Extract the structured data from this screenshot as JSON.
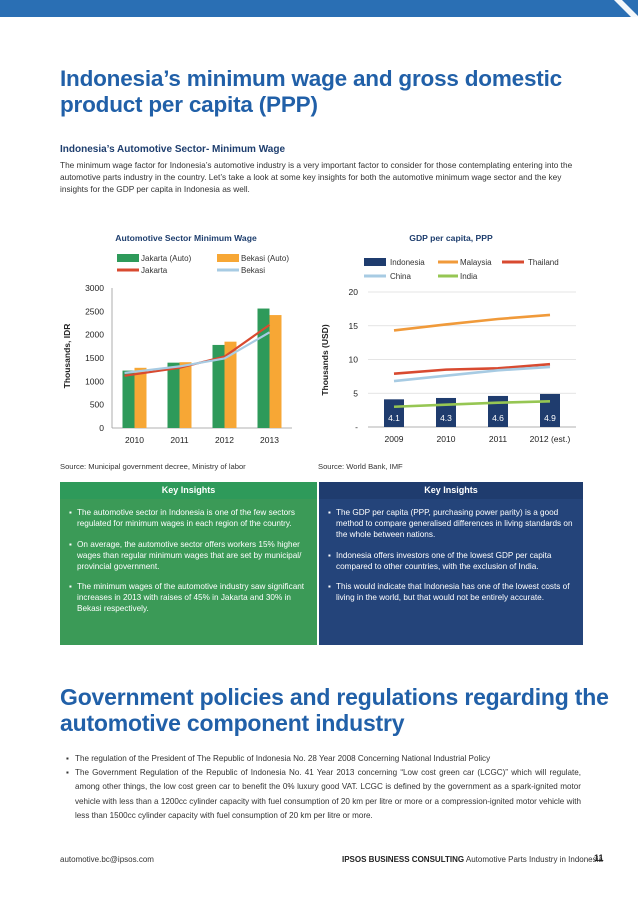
{
  "header": {
    "title": "Indonesia’s minimum wage and gross domestic product per capita (PPP)"
  },
  "intro": {
    "subheading": "Indonesia’s Automotive Sector- Minimum Wage",
    "paragraph": "The minimum wage factor for Indonesia’s automotive industry is a very important factor to consider for those contemplating entering into the automotive parts industry in the country. Let’s take a look at some key insights for both the automotive minimum wage sector and the key insights for the GDP per capita in Indonesia as well."
  },
  "colors": {
    "accent_blue": "#2160a8",
    "navy": "#1f3c6e",
    "green": "#3b9a57",
    "bar_green": "#2e9a5a",
    "bar_orange": "#f7a735",
    "line_red": "#d84a30",
    "line_lightblue": "#a7cbe3",
    "line_lightgreen": "#96c653",
    "line_orange": "#f09a3a"
  },
  "chart_data": [
    {
      "type": "bar",
      "title": "Automotive Sector Minimum Wage",
      "ylabel": "Thousands, IDR",
      "xlabel": "",
      "categories": [
        "2010",
        "2011",
        "2012",
        "2013"
      ],
      "ylim": [
        0,
        3000
      ],
      "yticks": [
        "0",
        "500",
        "1000",
        "1500",
        "2000",
        "2500",
        "3000"
      ],
      "series": [
        {
          "name": "Jakarta (Auto)",
          "kind": "bar",
          "values": [
            1230,
            1400,
            1780,
            2560
          ]
        },
        {
          "name": "Bekasi (Auto)",
          "kind": "bar",
          "values": [
            1290,
            1410,
            1850,
            2420
          ]
        },
        {
          "name": "Jakarta",
          "kind": "line",
          "values": [
            1120,
            1290,
            1530,
            2210
          ]
        },
        {
          "name": "Bekasi",
          "kind": "line",
          "values": [
            1180,
            1320,
            1490,
            2050
          ]
        }
      ],
      "legend_position": "top",
      "grid": false
    },
    {
      "type": "bar",
      "title": "GDP per capita, PPP",
      "ylabel": "Thousands (USD)",
      "xlabel": "",
      "categories": [
        "2009",
        "2010",
        "2011",
        "2012 (est.)"
      ],
      "ylim": [
        0,
        20
      ],
      "yticks": [
        "-",
        "5",
        "10",
        "15",
        "20"
      ],
      "series": [
        {
          "name": "Indonesia",
          "kind": "bar",
          "values": [
            4.1,
            4.3,
            4.6,
            4.9
          ],
          "labels": [
            "4.1",
            "4.3",
            "4.6",
            "4.9"
          ]
        },
        {
          "name": "Malaysia",
          "kind": "line",
          "values": [
            14.3,
            15.2,
            16.0,
            16.6
          ]
        },
        {
          "name": "Thailand",
          "kind": "line",
          "values": [
            7.9,
            8.5,
            8.7,
            9.3
          ]
        },
        {
          "name": "China",
          "kind": "line",
          "values": [
            6.8,
            7.6,
            8.4,
            8.9
          ]
        },
        {
          "name": "India",
          "kind": "line",
          "values": [
            3.0,
            3.3,
            3.6,
            3.8
          ]
        }
      ],
      "legend_position": "top",
      "grid": true
    }
  ],
  "sources": {
    "left": "Source: Municipal government decree, Ministry of labor",
    "right": "Source: World Bank, IMF"
  },
  "insights_left": {
    "heading": "Key Insights",
    "items": [
      "The automotive sector in Indonesia is one of the few sectors regulated for minimum wages in each region of the country.",
      "On average, the automotive sector offers workers 15% higher wages than regular minimum wages that are set by municipal/ provincial government.",
      "The minimum wages of the automotive industry saw significant increases in 2013 with raises of 45% in Jakarta and 30% in Bekasi respectively."
    ]
  },
  "insights_right": {
    "heading": "Key Insights",
    "items": [
      "The GDP per capita (PPP, purchasing power parity) is a good method to compare generalised differences in living standards on the whole between nations.",
      "Indonesia offers investors one of the lowest GDP per capita compared to other countries, with the exclusion of India.",
      "This would indicate that Indonesia has one of the lowest costs of living in the world, but that would not be entirely accurate."
    ]
  },
  "section2": {
    "title": "Government policies and regulations regarding the automotive component industry",
    "items": [
      "The regulation of the President of The Republic of Indonesia No. 28 Year 2008 Concerning National Industrial Policy",
      "The Government Regulation of the Republic of Indonesia No. 41 Year 2013 concerning “Low cost green car (LCGC)” which will regulate, among other things, the low cost green car to benefit the 0% luxury good VAT. LCGC is defined by the government as a spark-ignited motor vehicle with less than a 1200cc cylinder capacity with fuel consumption of 20 km per litre or more or a compression-ignited motor vehicle with less than 1500cc cylinder capacity with fuel consumption of 20 km per litre or more."
    ]
  },
  "footer": {
    "email": "automotive.bc@ipsos.com",
    "brand": "IPSOS BUSINESS CONSULTING",
    "doc": "Automotive Parts Industry in Indonesia",
    "page": "11"
  }
}
